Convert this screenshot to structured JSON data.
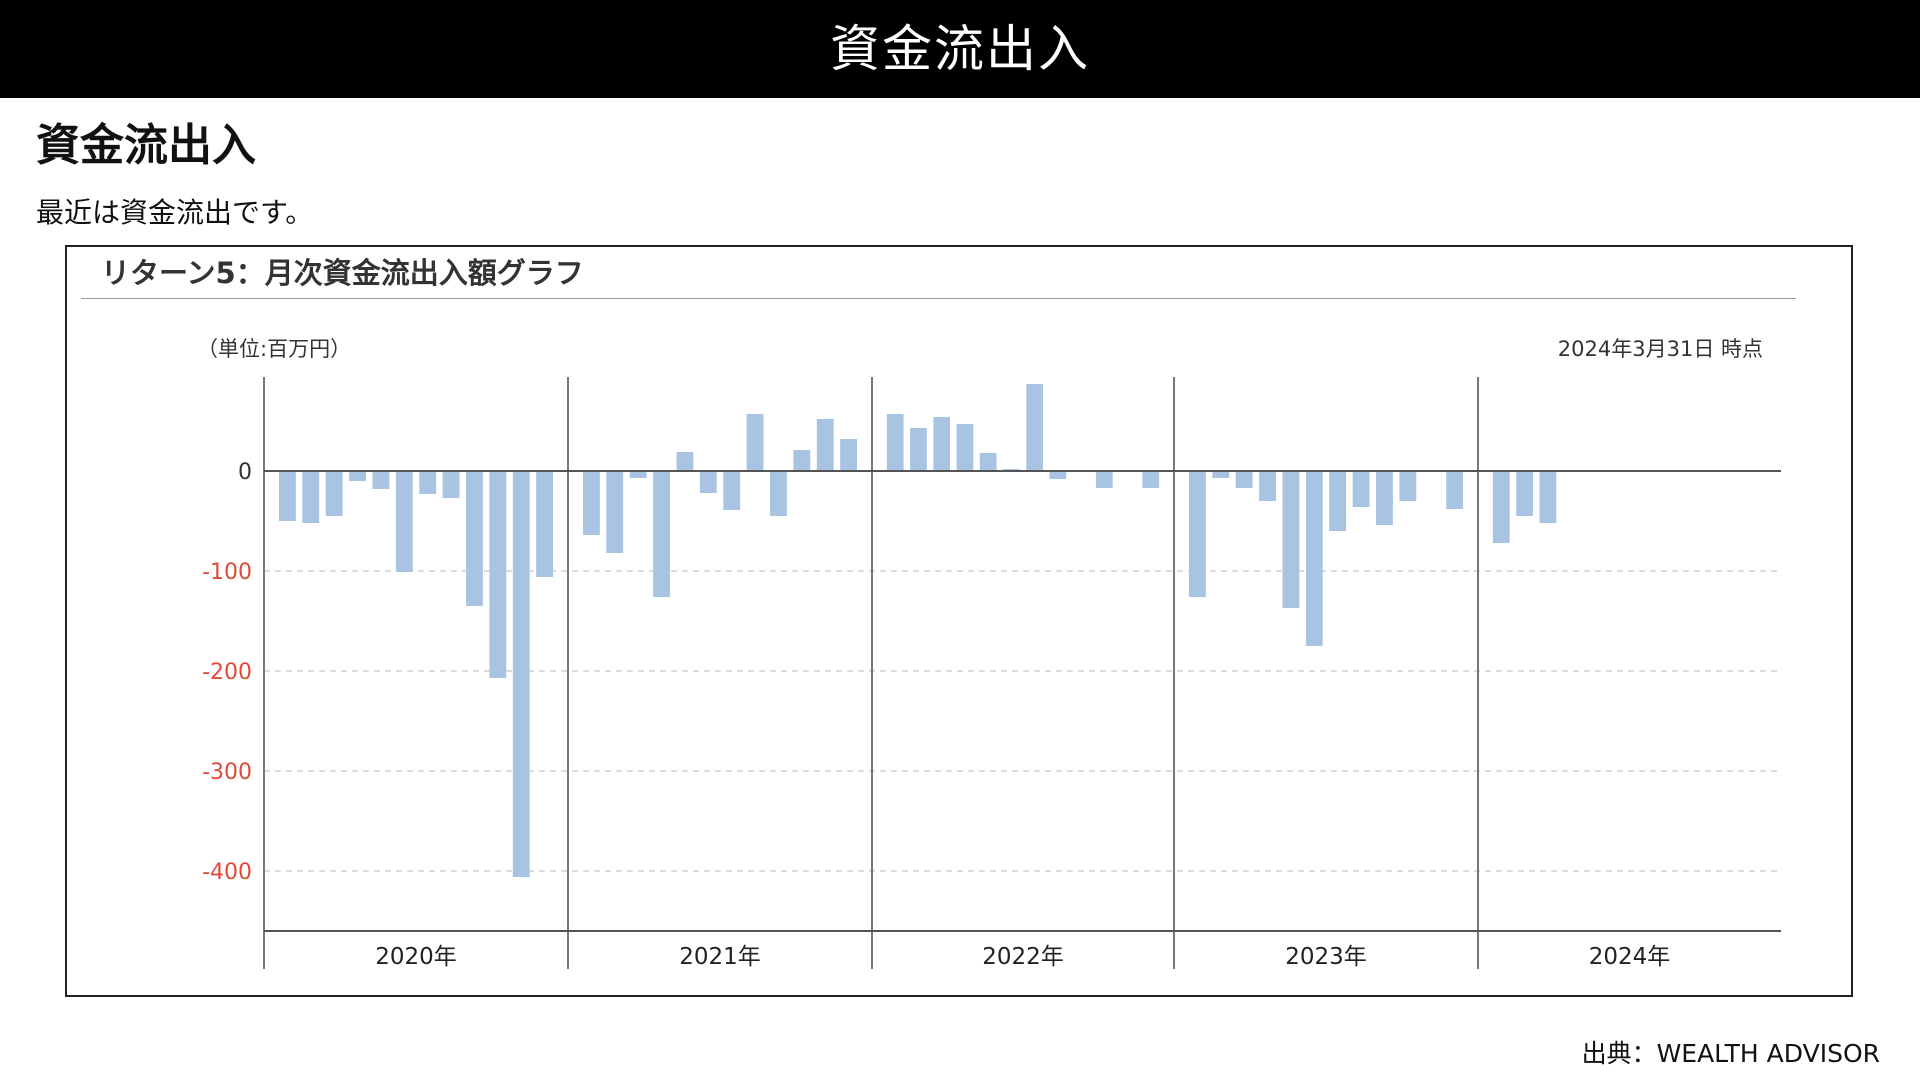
{
  "header": {
    "title": "資金流出入"
  },
  "section": {
    "heading": "資金流出入",
    "description": "最近は資金流出です。"
  },
  "chart_data": {
    "type": "bar",
    "title": "リターン5：月次資金流出入額グラフ",
    "unit_label": "（単位:百万円）",
    "as_of": "2024年3月31日 時点",
    "ylim": [
      -450,
      95
    ],
    "yticks": [
      {
        "value": 0,
        "label": "0"
      },
      {
        "value": -100,
        "label": "-100"
      },
      {
        "value": -200,
        "label": "-200"
      },
      {
        "value": -300,
        "label": "-300"
      },
      {
        "value": -400,
        "label": "-400"
      }
    ],
    "grid": "horizontal dashed",
    "bar_color": "#a9c4e2",
    "negative_tick_color": "#e04a3a",
    "year_groups": [
      {
        "label": "2020年",
        "values": [
          -50,
          -52,
          -45,
          -10,
          -18,
          -101,
          -23,
          -27,
          -135,
          -207,
          -406,
          -106
        ]
      },
      {
        "label": "2021年",
        "values": [
          -64,
          -82,
          -7,
          -126,
          19,
          -22,
          -39,
          57,
          -45,
          21,
          52,
          32
        ]
      },
      {
        "label": "2022年",
        "values": [
          57,
          43,
          54,
          47,
          18,
          2,
          87,
          -8,
          0,
          -17,
          0,
          -17
        ]
      },
      {
        "label": "2023年",
        "values": [
          -126,
          -7,
          -17,
          -30,
          -137,
          -175,
          -60,
          -36,
          -54,
          -30,
          0,
          -38
        ]
      },
      {
        "label": "2024年",
        "values": [
          -72,
          -45,
          -52
        ]
      }
    ]
  },
  "footer": {
    "source": "出典：WEALTH ADVISOR"
  }
}
